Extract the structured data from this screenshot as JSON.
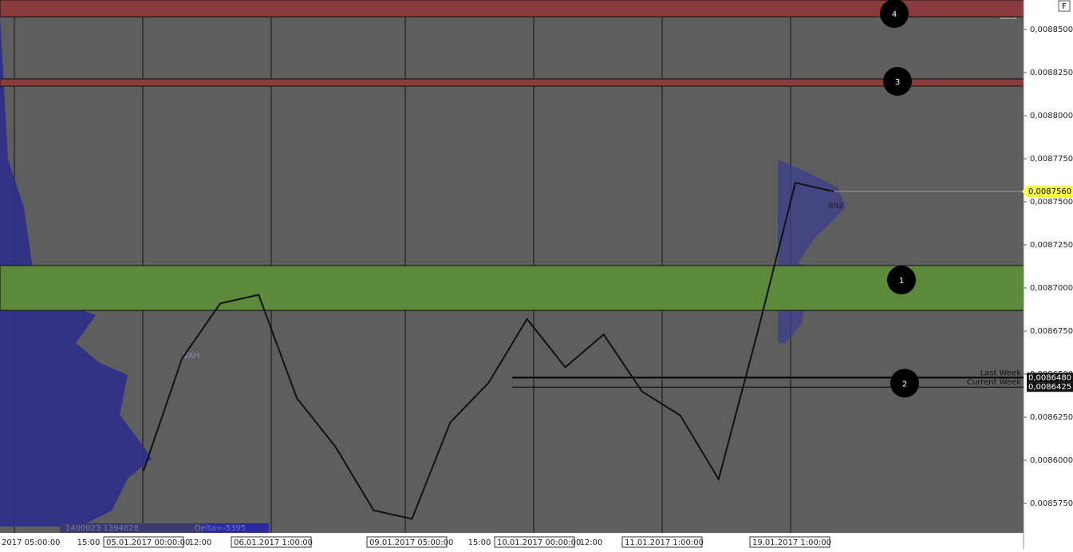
{
  "chart_data": {
    "type": "price",
    "corner_button": "F",
    "ylim": [
      0.0085579,
      0.0088671
    ],
    "yticks": [
      {
        "value": 0.00885,
        "label": "0,0088500"
      },
      {
        "value": 0.008825,
        "label": "0,0088250"
      },
      {
        "value": 0.0088,
        "label": "0,0088000"
      },
      {
        "value": 0.008775,
        "label": "0,0087750"
      },
      {
        "value": 0.00875,
        "label": "0,0087500"
      },
      {
        "value": 0.008725,
        "label": "0,0087250"
      },
      {
        "value": 0.0087,
        "label": "0,0087000"
      },
      {
        "value": 0.008675,
        "label": "0,0086750"
      },
      {
        "value": 0.00865,
        "label": "0,0086500"
      },
      {
        "value": 0.008625,
        "label": "0,0086250"
      },
      {
        "value": 0.0086,
        "label": "0,0086000"
      },
      {
        "value": 0.008575,
        "label": "0,0085750"
      }
    ],
    "xlabels": [
      "2017 05:00:00",
      "15:00",
      "05.01.2017 00:00:00",
      "12:00",
      "06.01.2017 1:00:00",
      "09.01.2017 05:00:00",
      "15:00",
      "10.01.2017 00:00:00",
      "12:00",
      "11.01.2017 1:00:00",
      "19.01.2017 1:00:00"
    ],
    "zones": [
      {
        "label": "4",
        "range": [
          0.0088574,
          0.0088671
        ],
        "color": "#8b3a3e"
      },
      {
        "label": "3",
        "range": [
          0.0088171,
          0.0088213
        ],
        "color": "#8b3a3e"
      },
      {
        "label": "1",
        "range": [
          0.008687,
          0.008713
        ],
        "color": "#5d8a3a"
      }
    ],
    "levels": [
      {
        "name": "Last Week",
        "value": 0.008648,
        "label": "0,0086480",
        "marker": "2"
      },
      {
        "name": "Current Week",
        "value": 0.0086425,
        "label": "0,0086425"
      }
    ],
    "last_price": {
      "value": 0.008756,
      "label": "0,0087560"
    },
    "series": [
      {
        "color": "#111111",
        "values": [
          0.008594,
          0.008659,
          0.008691,
          0.008696,
          0.008636,
          0.008608,
          0.008571,
          0.008566,
          0.008622,
          0.008645,
          0.008682,
          0.008654,
          0.008673,
          0.00864,
          0.008626,
          0.008589,
          0.008673,
          0.008761,
          0.008756
        ]
      }
    ],
    "annotations": {
      "vah": "VAH",
      "volume": "892",
      "totals": "1400023 1394628",
      "delta": "Delta=-5395"
    }
  }
}
